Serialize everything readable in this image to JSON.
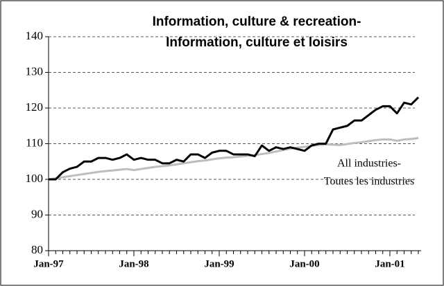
{
  "chart_data": {
    "type": "line",
    "title": [
      "Information, culture & recreation-",
      "Information, culture et loisirs"
    ],
    "annotation": [
      "All industries-",
      "Toutes les industries"
    ],
    "categories": [
      "Jan-97",
      null,
      null,
      null,
      null,
      null,
      null,
      null,
      null,
      null,
      null,
      null,
      "Jan-98",
      null,
      null,
      null,
      null,
      null,
      null,
      null,
      null,
      null,
      null,
      null,
      "Jan-99",
      null,
      null,
      null,
      null,
      null,
      null,
      null,
      null,
      null,
      null,
      null,
      "Jan-00",
      null,
      null,
      null,
      null,
      null,
      null,
      null,
      null,
      null,
      null,
      null,
      "Jan-01",
      null,
      null,
      null,
      null
    ],
    "series": [
      {
        "color": "#000000",
        "values": [
          100,
          100,
          102,
          103,
          103.5,
          105,
          105,
          106,
          106,
          105.5,
          106,
          107,
          105.5,
          106,
          105.5,
          105.5,
          104.5,
          104.5,
          105.5,
          105,
          107,
          107,
          106,
          107.5,
          108,
          108,
          107,
          107,
          107,
          106.5,
          109.5,
          108,
          109,
          108.5,
          109,
          108.5,
          108,
          109.5,
          110,
          110,
          114,
          114.5,
          115,
          116.5,
          116.5,
          118,
          119.5,
          120.5,
          120.5,
          118.5,
          121.5,
          121,
          123
        ]
      },
      {
        "color": "#bdbdbd",
        "values": [
          100,
          100.3,
          100.6,
          100.9,
          101.2,
          101.5,
          101.8,
          102.1,
          102.3,
          102.5,
          102.7,
          102.9,
          102.6,
          102.9,
          103.2,
          103.5,
          103.7,
          103.9,
          104.2,
          104.5,
          104.8,
          105.1,
          105.3,
          105.6,
          105.9,
          106.1,
          106.2,
          106.4,
          106.6,
          106.8,
          107.1,
          107.4,
          107.8,
          108.2,
          108.6,
          108.9,
          109.1,
          109.4,
          109.6,
          109.8,
          109.7,
          109.6,
          109.9,
          110.2,
          110.4,
          110.7,
          111,
          111.2,
          111.2,
          110.8,
          111.2,
          111.3,
          111.6
        ]
      }
    ],
    "ylim": [
      80,
      140
    ],
    "yticks": [
      80,
      90,
      100,
      110,
      120,
      130,
      140
    ],
    "grid": true
  }
}
